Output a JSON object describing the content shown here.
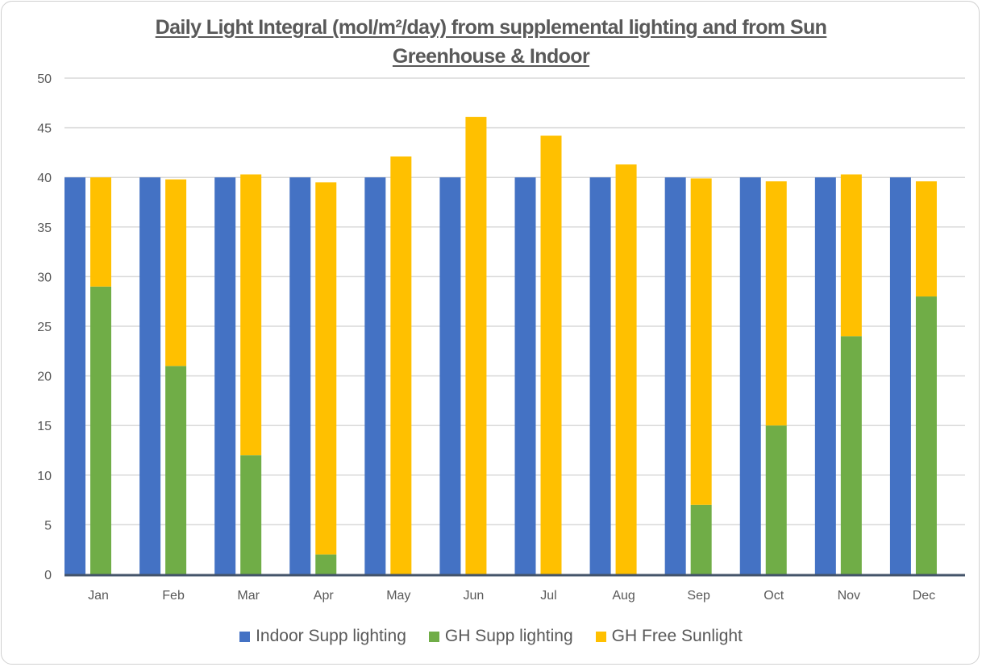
{
  "chart_data": {
    "type": "bar",
    "title": "Daily Light Integral (mol/m²/day) from supplemental lighting and from Sun",
    "subtitle": "Greenhouse & Indoor",
    "xlabel": "",
    "ylabel": "",
    "ylim": [
      0,
      50
    ],
    "yticks": [
      0,
      5,
      10,
      15,
      20,
      25,
      30,
      35,
      40,
      45,
      50
    ],
    "grid": true,
    "legend_position": "bottom",
    "categories": [
      "Jan",
      "Feb",
      "Mar",
      "Apr",
      "May",
      "Jun",
      "Jul",
      "Aug",
      "Sep",
      "Oct",
      "Nov",
      "Dec"
    ],
    "series": [
      {
        "name": "Indoor Supp lighting",
        "color": "#4472C4",
        "stack": "indoor",
        "values": [
          40,
          40,
          40,
          40,
          40,
          40,
          40,
          40,
          40,
          40,
          40,
          40
        ]
      },
      {
        "name": "GH Supp lighting",
        "color": "#70AD47",
        "stack": "gh",
        "values": [
          29,
          21,
          12,
          2,
          0,
          0,
          0,
          0,
          7,
          15,
          24,
          28
        ]
      },
      {
        "name": "GH Free Sunlight",
        "color": "#FFC000",
        "stack": "gh",
        "values": [
          11,
          18.8,
          28.3,
          37.5,
          42.1,
          46.1,
          44.2,
          41.3,
          32.9,
          24.6,
          16.3,
          11.6
        ]
      }
    ]
  }
}
